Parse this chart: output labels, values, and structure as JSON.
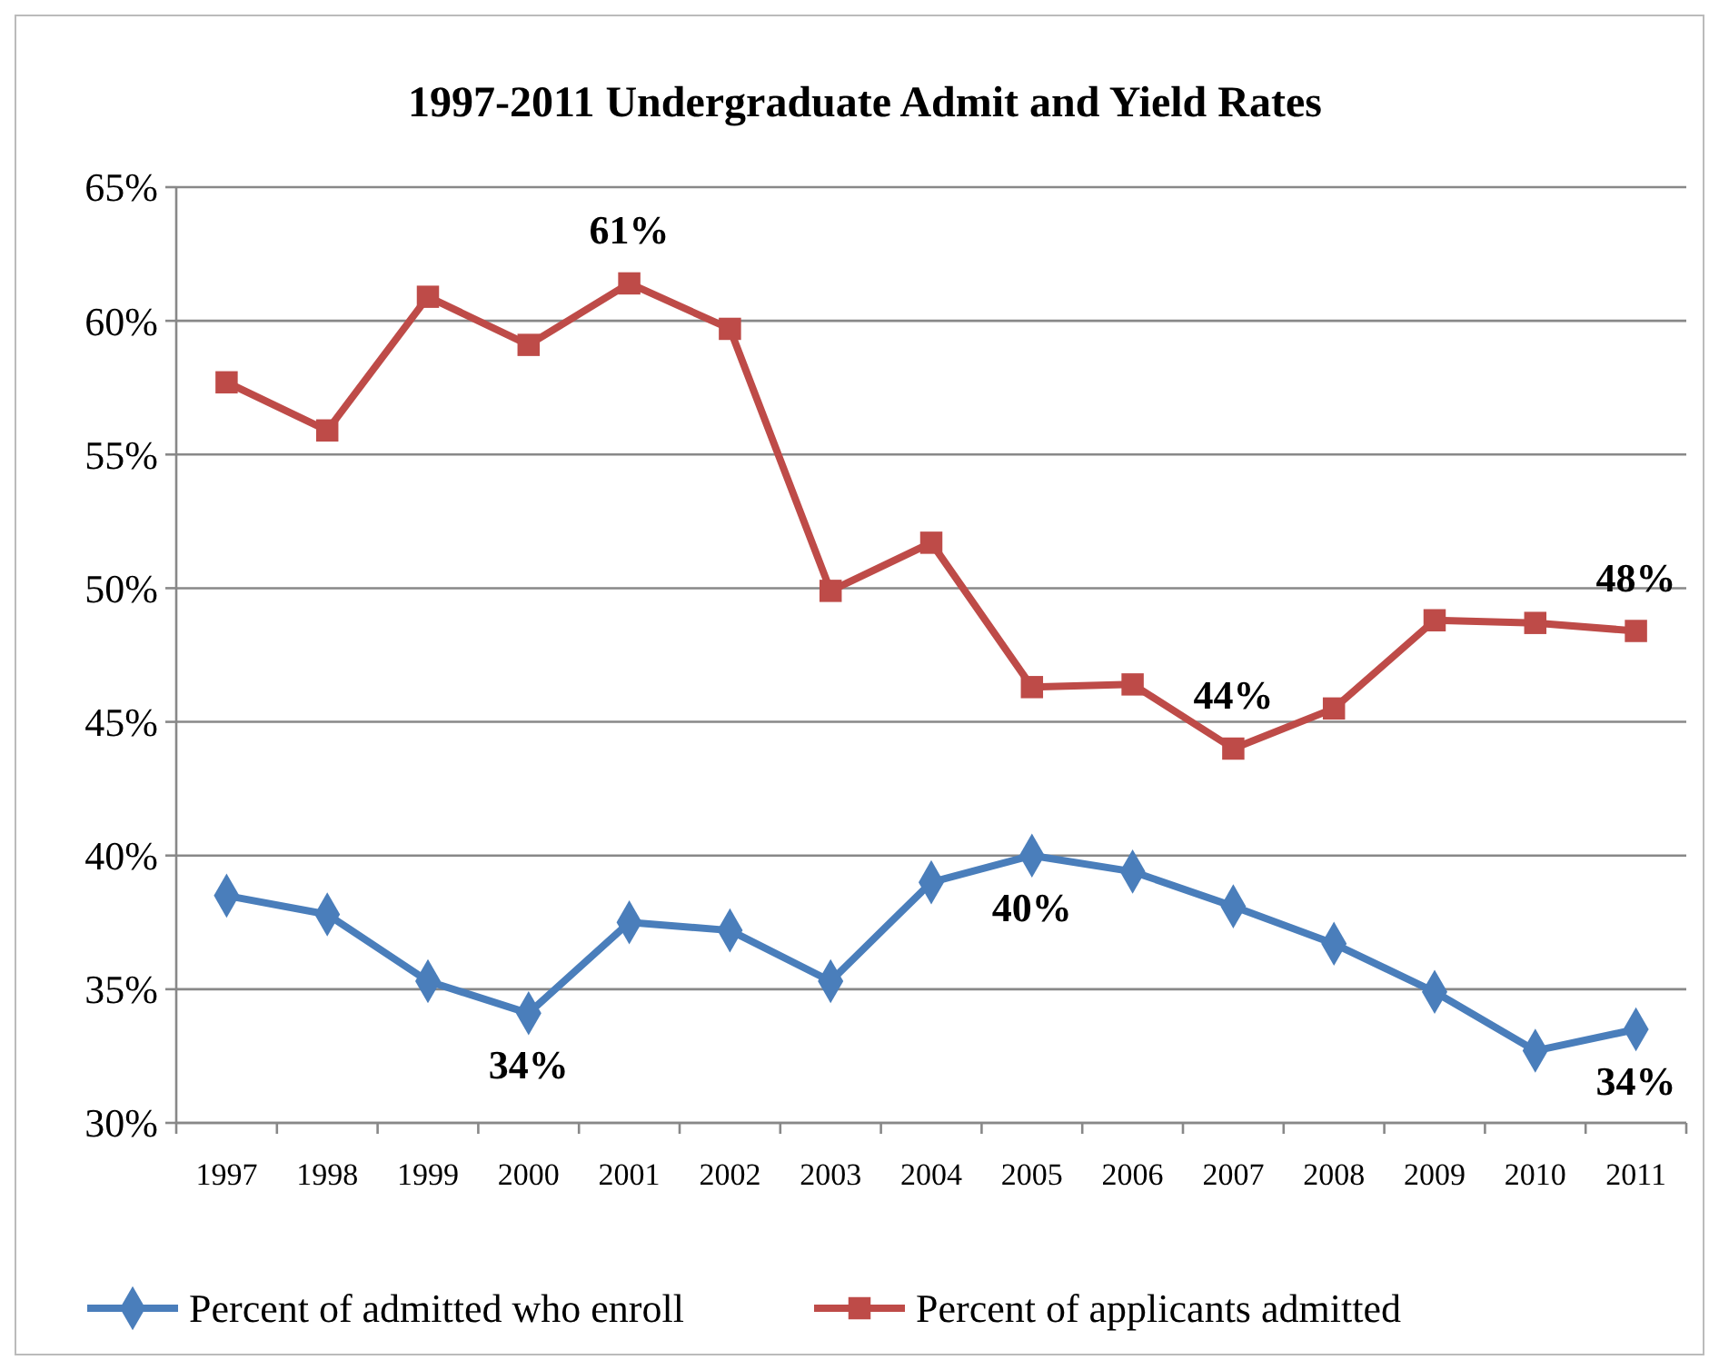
{
  "chart_data": {
    "type": "line",
    "title": "1997-2011 Undergraduate Admit and Yield Rates",
    "categories": [
      "1997",
      "1998",
      "1999",
      "2000",
      "2001",
      "2002",
      "2003",
      "2004",
      "2005",
      "2006",
      "2007",
      "2008",
      "2009",
      "2010",
      "2011"
    ],
    "series": [
      {
        "name": "Percent of admitted who enroll",
        "color": "#4a7ebb",
        "marker": "diamond",
        "values": [
          38.5,
          37.8,
          35.3,
          34.1,
          37.5,
          37.2,
          35.3,
          39.0,
          40.0,
          39.4,
          38.1,
          36.7,
          34.9,
          32.7,
          33.5
        ],
        "value_labels": [
          null,
          null,
          null,
          "34%",
          null,
          null,
          null,
          null,
          "40%",
          null,
          null,
          null,
          null,
          null,
          "34%"
        ]
      },
      {
        "name": "Percent of applicants admitted",
        "color": "#be4b48",
        "marker": "square",
        "values": [
          57.7,
          55.9,
          60.9,
          59.1,
          61.4,
          59.7,
          49.9,
          51.7,
          46.3,
          46.4,
          44.0,
          45.5,
          48.8,
          48.7,
          48.4
        ],
        "value_labels": [
          null,
          null,
          null,
          null,
          "61%",
          null,
          null,
          null,
          null,
          null,
          "44%",
          null,
          null,
          null,
          "48%"
        ]
      }
    ],
    "ylim": [
      30,
      65
    ],
    "yticks": [
      {
        "value": 30,
        "label": "30%"
      },
      {
        "value": 35,
        "label": "35%"
      },
      {
        "value": 40,
        "label": "40%"
      },
      {
        "value": 45,
        "label": "45%"
      },
      {
        "value": 50,
        "label": "50%"
      },
      {
        "value": 55,
        "label": "55%"
      },
      {
        "value": 60,
        "label": "60%"
      },
      {
        "value": 65,
        "label": "65%"
      }
    ],
    "grid": "y",
    "legend": "bottom"
  }
}
